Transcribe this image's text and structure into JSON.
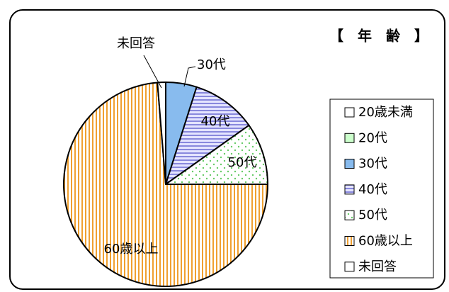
{
  "chart_data": {
    "type": "pie",
    "title": "【　年　齢　】",
    "categories": [
      "20歳未満",
      "20代",
      "30代",
      "40代",
      "50代",
      "60歳以上",
      "未回答"
    ],
    "values": [
      0,
      0,
      4.9,
      10.3,
      9.8,
      73.7,
      1.3
    ],
    "colors": [
      "#ffffff",
      "#ccffcc",
      "#88bbee",
      "#8888dd",
      "#66cc66",
      "#f0a030",
      "#ffffff"
    ]
  }
}
